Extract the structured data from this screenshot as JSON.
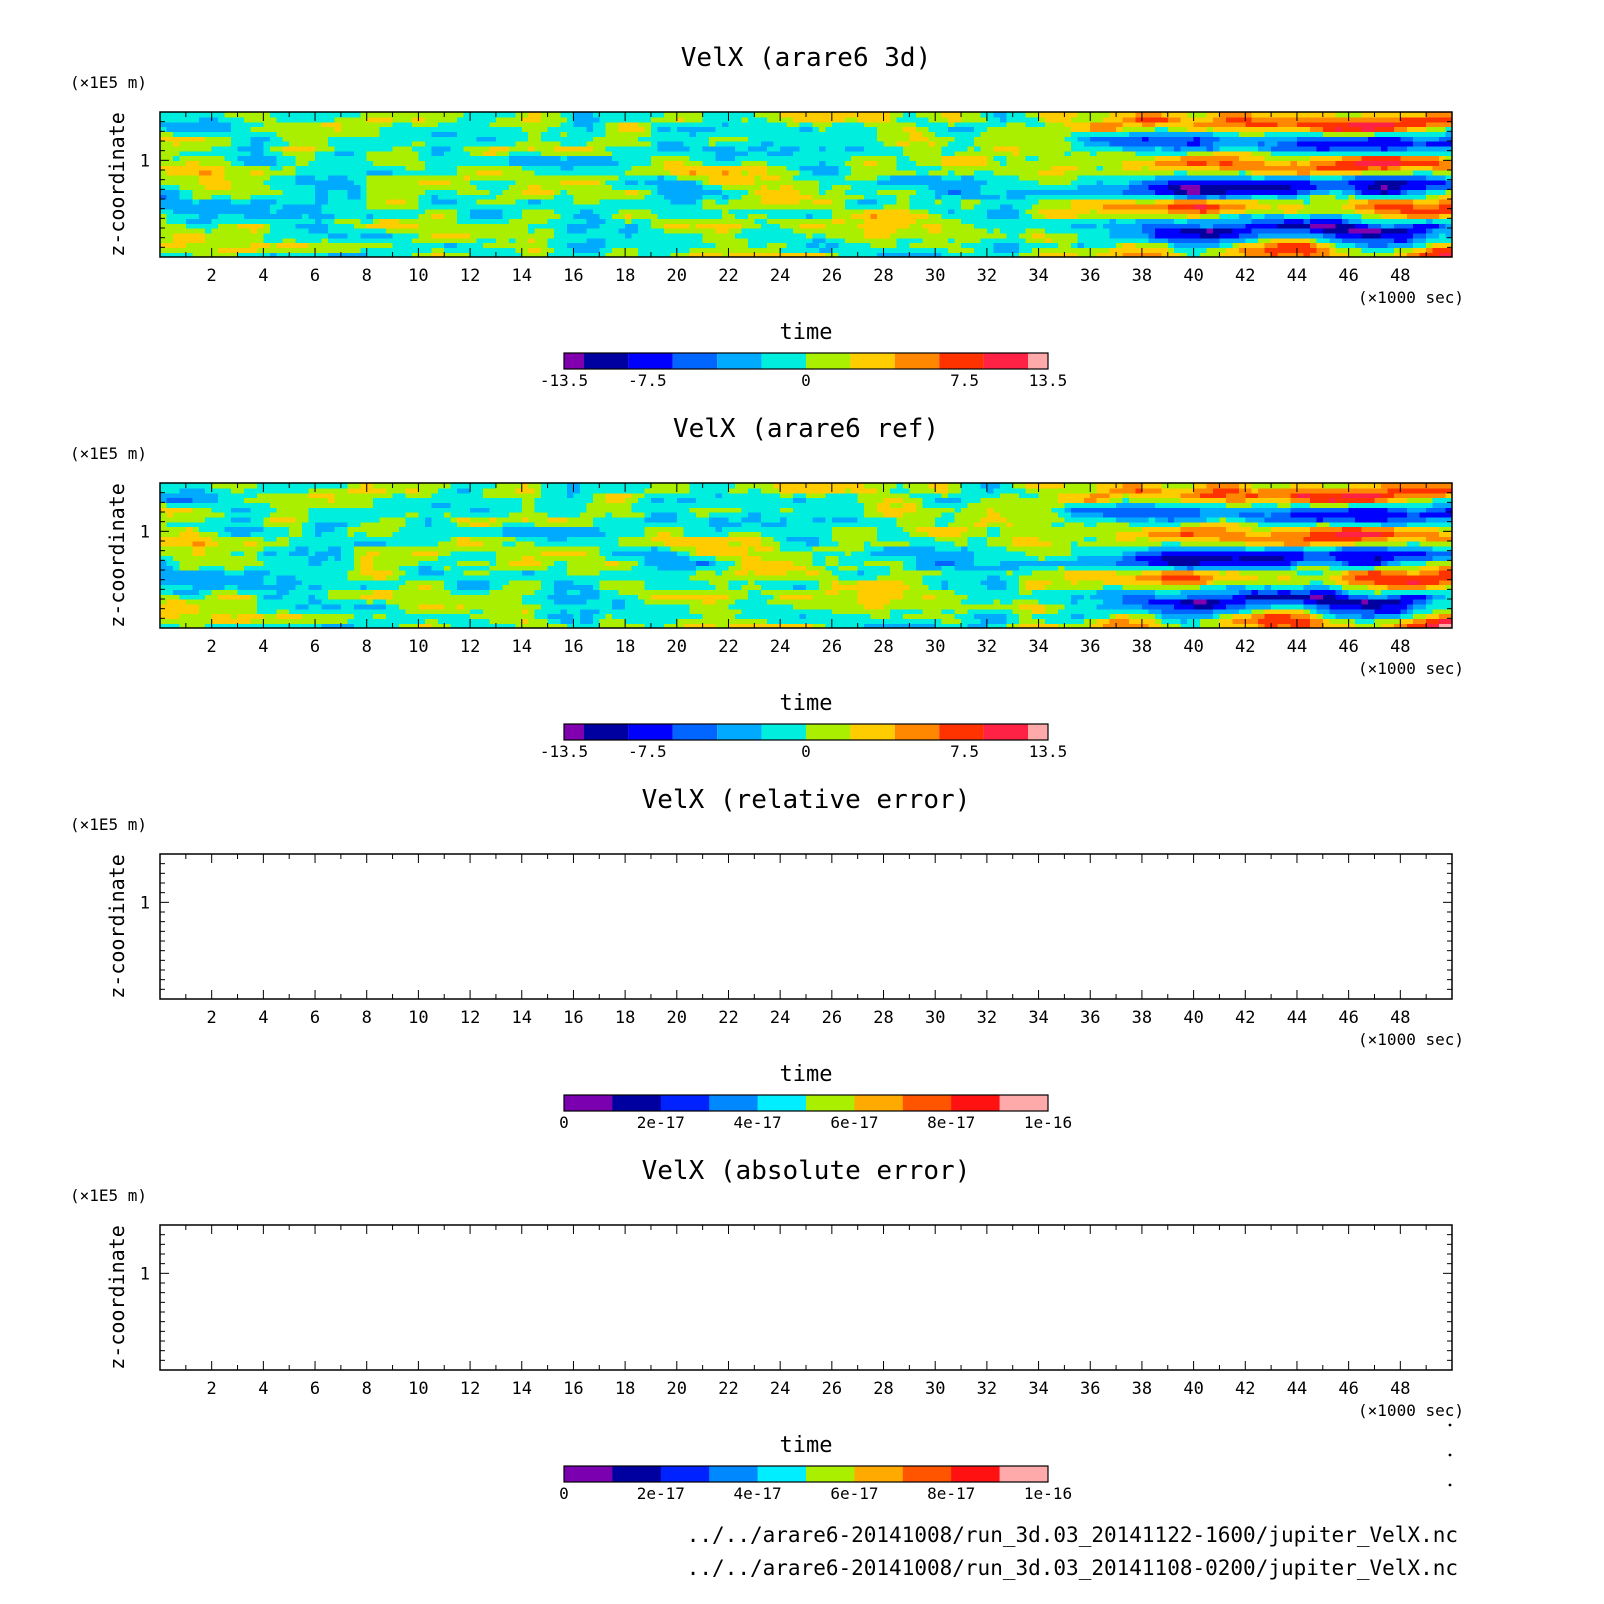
{
  "chart_data": [
    {
      "type": "heatmap",
      "title": "VelX (arare6 3d)",
      "xlabel": "time",
      "x_unit": "(×1000 sec)",
      "ylabel": "z-coordinate",
      "y_unit": "(×1E5 m)",
      "xlim": [
        0,
        50
      ],
      "ylim": [
        0,
        1.5
      ],
      "x_ticks": [
        2,
        4,
        6,
        8,
        10,
        12,
        14,
        16,
        18,
        20,
        22,
        24,
        26,
        28,
        30,
        32,
        34,
        36,
        38,
        40,
        42,
        44,
        46,
        48
      ],
      "y_ticks": [
        1
      ],
      "field": "shaded",
      "colorbar": {
        "labels": [
          "-13.5",
          "-7.5",
          "0",
          "7.5",
          "13.5"
        ],
        "label_values": [
          -13.5,
          -7.5,
          0,
          7.5,
          13.5
        ],
        "min": -13.5,
        "max": 13.5,
        "colors": [
          "#8000b0",
          "#0000a0",
          "#0000ff",
          "#0066ff",
          "#00aaff",
          "#00eedd",
          "#aaee00",
          "#ffcc00",
          "#ff8800",
          "#ff3300",
          "#ff2244",
          "#ffaaaa"
        ]
      }
    },
    {
      "type": "heatmap",
      "title": "VelX (arare6 ref)",
      "xlabel": "time",
      "x_unit": "(×1000 sec)",
      "ylabel": "z-coordinate",
      "y_unit": "(×1E5 m)",
      "xlim": [
        0,
        50
      ],
      "ylim": [
        0,
        1.5
      ],
      "x_ticks": [
        2,
        4,
        6,
        8,
        10,
        12,
        14,
        16,
        18,
        20,
        22,
        24,
        26,
        28,
        30,
        32,
        34,
        36,
        38,
        40,
        42,
        44,
        46,
        48
      ],
      "y_ticks": [
        1
      ],
      "field": "shaded",
      "colorbar": {
        "labels": [
          "-13.5",
          "-7.5",
          "0",
          "7.5",
          "13.5"
        ],
        "label_values": [
          -13.5,
          -7.5,
          0,
          7.5,
          13.5
        ],
        "min": -13.5,
        "max": 13.5,
        "colors": [
          "#8000b0",
          "#0000a0",
          "#0000ff",
          "#0066ff",
          "#00aaff",
          "#00eedd",
          "#aaee00",
          "#ffcc00",
          "#ff8800",
          "#ff3300",
          "#ff2244",
          "#ffaaaa"
        ]
      }
    },
    {
      "type": "heatmap",
      "title": "VelX (relative error)",
      "xlabel": "time",
      "x_unit": "(×1000 sec)",
      "ylabel": "z-coordinate",
      "y_unit": "(×1E5 m)",
      "xlim": [
        0,
        50
      ],
      "ylim": [
        0,
        1.5
      ],
      "x_ticks": [
        2,
        4,
        6,
        8,
        10,
        12,
        14,
        16,
        18,
        20,
        22,
        24,
        26,
        28,
        30,
        32,
        34,
        36,
        38,
        40,
        42,
        44,
        46,
        48
      ],
      "y_ticks": [
        1
      ],
      "field": "empty",
      "colorbar": {
        "labels": [
          "0",
          "2e-17",
          "4e-17",
          "6e-17",
          "8e-17",
          "1e-16"
        ],
        "label_values": [
          0,
          2e-17,
          4e-17,
          6e-17,
          8e-17,
          1e-16
        ],
        "min": 0,
        "max": 1e-16,
        "colors": [
          "#7a00b0",
          "#0000a0",
          "#0022ff",
          "#0088ff",
          "#00eeff",
          "#aaee00",
          "#ffaa00",
          "#ff5500",
          "#ff1111",
          "#ffaaaa"
        ]
      }
    },
    {
      "type": "heatmap",
      "title": "VelX (absolute error)",
      "xlabel": "time",
      "x_unit": "(×1000 sec)",
      "ylabel": "z-coordinate",
      "y_unit": "(×1E5 m)",
      "xlim": [
        0,
        50
      ],
      "ylim": [
        0,
        1.5
      ],
      "x_ticks": [
        2,
        4,
        6,
        8,
        10,
        12,
        14,
        16,
        18,
        20,
        22,
        24,
        26,
        28,
        30,
        32,
        34,
        36,
        38,
        40,
        42,
        44,
        46,
        48
      ],
      "y_ticks": [
        1
      ],
      "field": "empty",
      "colorbar": {
        "labels": [
          "0",
          "2e-17",
          "4e-17",
          "6e-17",
          "8e-17",
          "1e-16"
        ],
        "label_values": [
          0,
          2e-17,
          4e-17,
          6e-17,
          8e-17,
          1e-16
        ],
        "min": 0,
        "max": 1e-16,
        "colors": [
          "#7a00b0",
          "#0000a0",
          "#0022ff",
          "#0088ff",
          "#00eeff",
          "#aaee00",
          "#ffaa00",
          "#ff5500",
          "#ff1111",
          "#ffaaaa"
        ]
      }
    }
  ],
  "footer": {
    "line1": "../../arare6-20141008/run_3d.03_20141122-1600/jupiter_VelX.nc",
    "line2": "../../arare6-20141008/run_3d.03_20141108-0200/jupiter_VelX.nc"
  }
}
